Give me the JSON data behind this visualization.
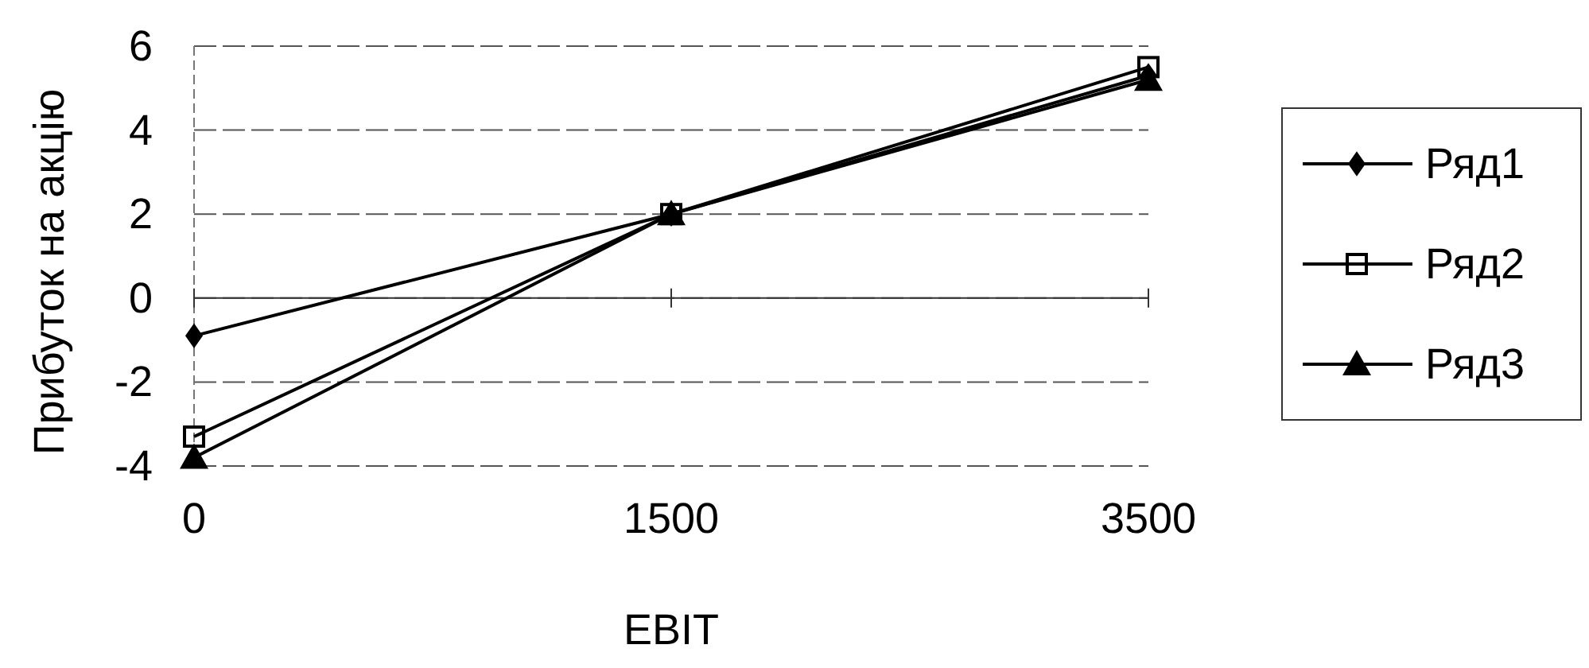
{
  "chart_data": {
    "type": "line",
    "xlabel": "EBIT",
    "ylabel": "Прибуток на акцію",
    "categories": [
      "0",
      "1500",
      "3500"
    ],
    "series": [
      {
        "name": "Ряд1",
        "color": "#000000",
        "marker": "diamond",
        "values": [
          -0.9,
          2,
          5.3
        ]
      },
      {
        "name": "Ряд2",
        "color": "#000000",
        "marker": "square",
        "values": [
          -3.3,
          2,
          5.5
        ]
      },
      {
        "name": "Ряд3",
        "color": "#000000",
        "marker": "triangle",
        "values": [
          -3.8,
          2,
          5.2
        ]
      }
    ],
    "ylim": [
      -4,
      6
    ],
    "yticks": [
      -4,
      -2,
      0,
      2,
      4,
      6
    ],
    "grid": "y",
    "legend": "right"
  }
}
